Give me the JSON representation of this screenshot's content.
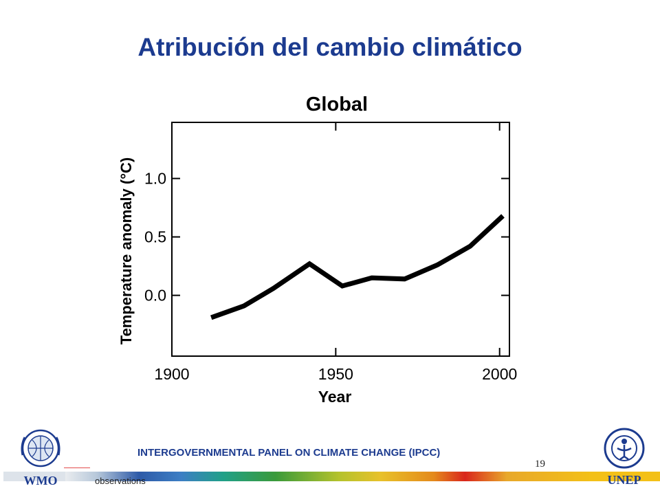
{
  "slide": {
    "title": "Atribución del cambio climático",
    "footer": "INTERGOVERNMENTAL PANEL ON CLIMATE CHANGE (IPCC)",
    "page_number": "19",
    "partial_caption": "observations"
  },
  "logos": {
    "left": "WMO",
    "right": "UNEP"
  },
  "colors": {
    "title": "#1c3b8f",
    "line": "#000000"
  },
  "chart_data": {
    "type": "line",
    "title": "Global",
    "xlabel": "Year",
    "ylabel": "Temperature anomaly (°C)",
    "xlim": [
      1900,
      2003
    ],
    "ylim": [
      -0.52,
      1.48
    ],
    "xticks": [
      1900,
      1950,
      2000
    ],
    "xtick_labels": [
      "1900",
      "1950",
      "2000"
    ],
    "yticks": [
      0.0,
      0.5,
      1.0
    ],
    "ytick_labels": [
      "0.0",
      "0.5",
      "1.0"
    ],
    "grid": false,
    "series": [
      {
        "x": [
          1912,
          1922,
          1931,
          1942,
          1952,
          1961,
          1971,
          1981,
          1991,
          2001
        ],
        "y": [
          -0.19,
          -0.09,
          0.06,
          0.27,
          0.08,
          0.15,
          0.14,
          0.26,
          0.42,
          0.68
        ]
      }
    ]
  }
}
